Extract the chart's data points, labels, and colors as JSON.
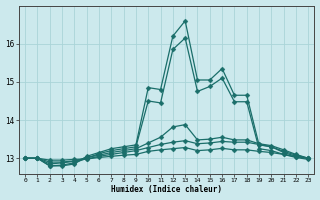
{
  "xlabel": "Humidex (Indice chaleur)",
  "background_color": "#cce9ed",
  "grid_color": "#aad4d8",
  "line_color": "#1a6e6a",
  "xlim": [
    -0.5,
    23.5
  ],
  "ylim": [
    12.6,
    17.0
  ],
  "yticks": [
    13,
    14,
    15,
    16
  ],
  "xticks": [
    0,
    1,
    2,
    3,
    4,
    5,
    6,
    7,
    8,
    9,
    10,
    11,
    12,
    13,
    14,
    15,
    16,
    17,
    18,
    19,
    20,
    21,
    22,
    23
  ],
  "series": [
    [
      13.0,
      13.0,
      12.8,
      12.8,
      12.85,
      13.05,
      13.15,
      13.25,
      13.3,
      13.35,
      14.85,
      14.8,
      16.2,
      16.6,
      15.05,
      15.05,
      15.35,
      14.65,
      14.65,
      13.35,
      13.3,
      13.15,
      13.05,
      13.0
    ],
    [
      13.0,
      13.0,
      12.8,
      12.82,
      12.88,
      13.0,
      13.12,
      13.2,
      13.25,
      13.3,
      14.5,
      14.45,
      15.85,
      16.15,
      14.75,
      14.88,
      15.1,
      14.48,
      14.48,
      13.25,
      13.2,
      13.1,
      13.02,
      12.97
    ],
    [
      13.0,
      13.0,
      12.85,
      12.88,
      12.92,
      13.02,
      13.08,
      13.15,
      13.2,
      13.25,
      13.4,
      13.55,
      13.82,
      13.88,
      13.48,
      13.5,
      13.55,
      13.48,
      13.48,
      13.38,
      13.33,
      13.22,
      13.1,
      13.0
    ],
    [
      13.0,
      13.0,
      12.9,
      12.9,
      12.93,
      12.98,
      13.05,
      13.1,
      13.15,
      13.2,
      13.28,
      13.36,
      13.42,
      13.46,
      13.38,
      13.4,
      13.44,
      13.42,
      13.42,
      13.36,
      13.3,
      13.18,
      13.08,
      13.0
    ],
    [
      13.0,
      13.0,
      12.95,
      12.95,
      12.97,
      12.98,
      13.02,
      13.05,
      13.08,
      13.1,
      13.18,
      13.22,
      13.25,
      13.28,
      13.2,
      13.22,
      13.26,
      13.22,
      13.22,
      13.18,
      13.15,
      13.1,
      13.04,
      13.0
    ]
  ],
  "markersize": 2.5,
  "linewidth": 0.9
}
